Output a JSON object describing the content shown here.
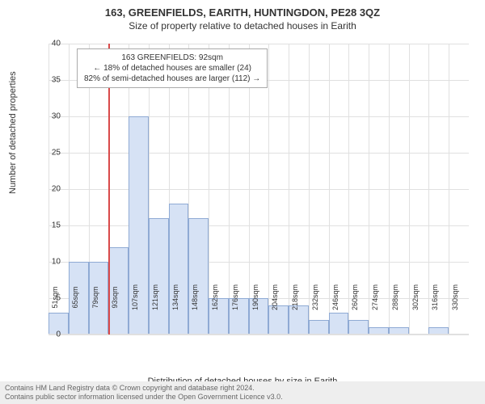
{
  "titles": {
    "line1": "163, GREENFIELDS, EARITH, HUNTINGDON, PE28 3QZ",
    "line2": "Size of property relative to detached houses in Earith"
  },
  "chart": {
    "type": "histogram",
    "ylabel": "Number of detached properties",
    "xlabel": "Distribution of detached houses by size in Earith",
    "background_color": "#ffffff",
    "grid_color": "#e0e0e0",
    "axis_color": "#666666",
    "label_fontsize": 11,
    "tick_fontsize": 10,
    "bar_fill": "#d6e2f5",
    "bar_stroke": "#8faad4",
    "ylim": [
      0,
      40
    ],
    "ytick_step": 5,
    "yticks": [
      0,
      5,
      10,
      15,
      20,
      25,
      30,
      35,
      40
    ],
    "x_categories": [
      "51sqm",
      "65sqm",
      "79sqm",
      "93sqm",
      "107sqm",
      "121sqm",
      "134sqm",
      "148sqm",
      "162sqm",
      "176sqm",
      "190sqm",
      "204sqm",
      "218sqm",
      "232sqm",
      "246sqm",
      "260sqm",
      "274sqm",
      "288sqm",
      "302sqm",
      "316sqm",
      "330sqm"
    ],
    "values": [
      3,
      10,
      10,
      12,
      30,
      16,
      18,
      16,
      5,
      5,
      5,
      4,
      4,
      2,
      3,
      2,
      1,
      1,
      0,
      1,
      0
    ],
    "marker": {
      "position_index": 3,
      "color": "#d94a4a"
    },
    "annotation": {
      "line1": "163 GREENFIELDS: 92sqm",
      "line2": "← 18% of detached houses are smaller (24)",
      "line3": "82% of semi-detached houses are larger (112) →",
      "border_color": "#aaaaaa",
      "bg_color": "#ffffff",
      "fontsize": 10
    }
  },
  "attribution": {
    "line1": "Contains HM Land Registry data © Crown copyright and database right 2024.",
    "line2": "Contains public sector information licensed under the Open Government Licence v3.0."
  }
}
